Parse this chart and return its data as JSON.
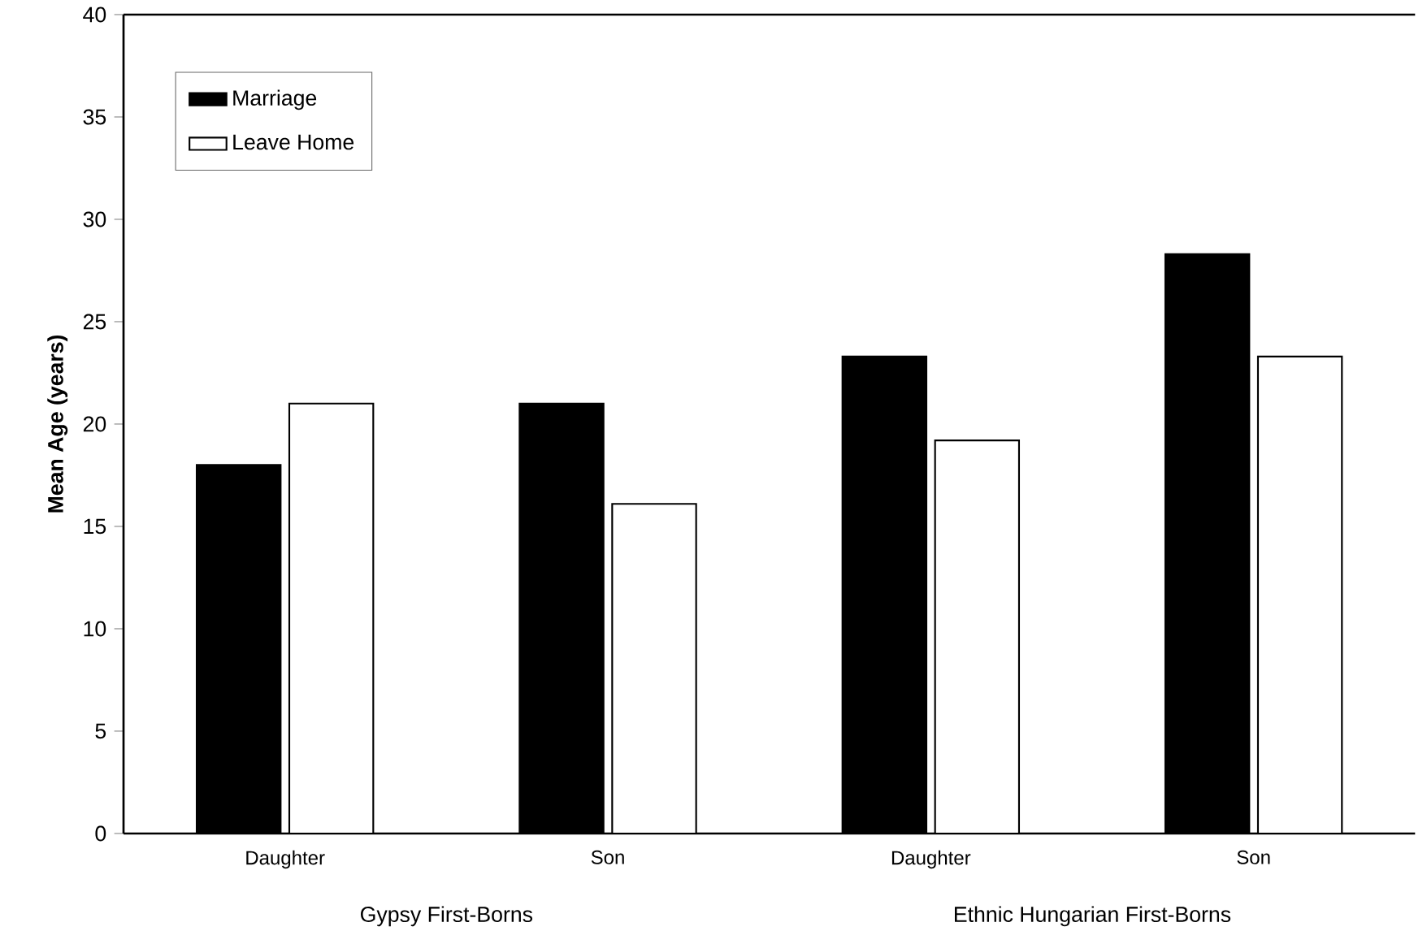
{
  "chart_data": {
    "type": "bar",
    "ylabel": "Mean Age (years)",
    "categories": [
      "Daughter",
      "Son",
      "Daughter",
      "Son"
    ],
    "series": [
      {
        "name": "Marriage",
        "color": "#000000",
        "values": [
          18,
          21,
          23.3,
          28.3
        ]
      },
      {
        "name": "Leave Home",
        "color": "#ffffff",
        "values": [
          21,
          16.1,
          19.2,
          23.3
        ]
      }
    ],
    "ylim": [
      0,
      40
    ],
    "yticks": [
      0,
      5,
      10,
      15,
      20,
      25,
      30,
      35,
      40
    ],
    "grid": false,
    "legend": "top left",
    "annotations": [
      "Gypsy  First-Borns",
      "Ethnic Hungarian First-Borns"
    ]
  }
}
